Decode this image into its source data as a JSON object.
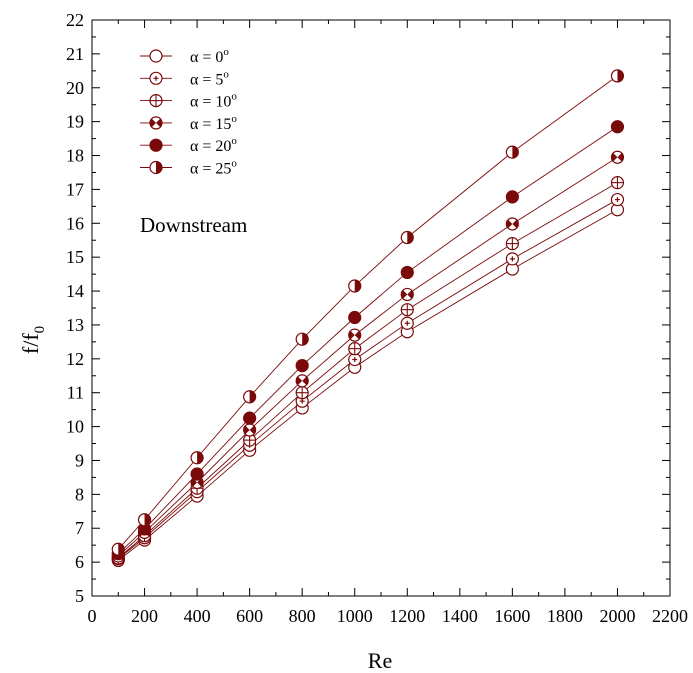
{
  "chart_data": {
    "type": "line",
    "xlabel": "Re",
    "ylabel": "f/f",
    "ylabel_sub": "0",
    "xlim": [
      0,
      2200
    ],
    "ylim": [
      5,
      22
    ],
    "xticks": [
      0,
      200,
      400,
      600,
      800,
      1000,
      1200,
      1400,
      1600,
      1800,
      2000,
      2200
    ],
    "yticks": [
      5,
      6,
      7,
      8,
      9,
      10,
      11,
      12,
      13,
      14,
      15,
      16,
      17,
      18,
      19,
      20,
      21,
      22
    ],
    "grid": false,
    "legend_position": "top-left",
    "annotation": "Downstream",
    "color": "#7a0a0a",
    "x": [
      100,
      200,
      400,
      600,
      800,
      1000,
      1200,
      1600,
      2000
    ],
    "series": [
      {
        "label_prefix": "α = ",
        "label_value": "0",
        "label_sup": "o",
        "marker": "open-circle",
        "values": [
          6.05,
          6.65,
          7.95,
          9.3,
          10.55,
          11.75,
          12.8,
          14.65,
          16.4
        ]
      },
      {
        "label_prefix": "α = ",
        "label_value": "5",
        "label_sup": "o",
        "marker": "dot-circle",
        "values": [
          6.1,
          6.72,
          8.08,
          9.45,
          10.75,
          11.98,
          13.05,
          14.95,
          16.7
        ]
      },
      {
        "label_prefix": "α = ",
        "label_value": "10",
        "label_sup": "o",
        "marker": "cross-circle",
        "values": [
          6.12,
          6.78,
          8.18,
          9.6,
          11.0,
          12.3,
          13.45,
          15.4,
          17.2
        ]
      },
      {
        "label_prefix": "α = ",
        "label_value": "15",
        "label_sup": "o",
        "marker": "bowtie-circle",
        "values": [
          6.18,
          6.88,
          8.35,
          9.9,
          11.35,
          12.7,
          13.9,
          15.98,
          17.95
        ]
      },
      {
        "label_prefix": "α = ",
        "label_value": "20",
        "label_sup": "o",
        "marker": "filled-circle",
        "values": [
          6.25,
          6.98,
          8.6,
          10.25,
          11.8,
          13.22,
          14.55,
          16.78,
          18.85
        ]
      },
      {
        "label_prefix": "α = ",
        "label_value": "25",
        "label_sup": "o",
        "marker": "half-circle",
        "values": [
          6.38,
          7.25,
          9.08,
          10.88,
          12.58,
          14.15,
          15.58,
          18.1,
          20.35
        ]
      }
    ]
  }
}
